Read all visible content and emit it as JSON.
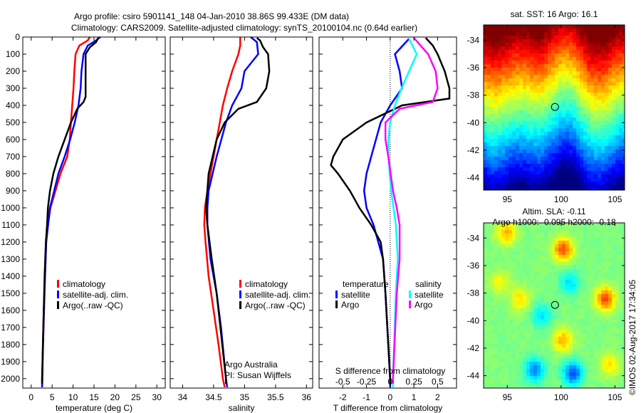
{
  "title_line1": "Argo profile: csiro 5901141_148 04-Jan-2010 38.86S 99.433E (DM data)",
  "title_line2": "Climatology: CARS2009. Satellite-adjusted climatology: synTS_20100104.nc (0.64d earlier)",
  "watermark": "©IMOS 02-Aug-2017 17:34:05",
  "colors": {
    "climatology": "#ff0000",
    "satellite": "#0000ff",
    "argo": "#000000",
    "sal_satellite": "#00ffff",
    "sal_argo": "#ff00ff"
  },
  "chart_data": [
    {
      "type": "line",
      "name": "temperature",
      "xlabel": "temperature (deg C)",
      "ylabel": "",
      "xlim": [
        -2,
        32
      ],
      "ylim": [
        2055,
        0
      ],
      "xticks": [
        0,
        5,
        10,
        15,
        20,
        25,
        30
      ],
      "yticks": [
        0,
        100,
        200,
        300,
        400,
        500,
        600,
        700,
        800,
        900,
        1000,
        1100,
        1200,
        1300,
        1400,
        1500,
        1600,
        1700,
        1800,
        1900,
        2000
      ],
      "legend": [
        "climatology",
        "satellite-adj. clim.",
        "Argo(..raw -QC)"
      ],
      "series": [
        {
          "name": "climatology",
          "color": "#ff0000",
          "depth": [
            0,
            20,
            50,
            100,
            200,
            300,
            400,
            500,
            600,
            700,
            800,
            900,
            1000,
            1100,
            1200,
            1400,
            1600,
            1800,
            2000,
            2050
          ],
          "values": [
            14,
            13.5,
            11.5,
            10.6,
            10.3,
            10.1,
            9.8,
            9.5,
            9.2,
            8.6,
            7,
            5.8,
            4.6,
            4,
            3.6,
            3.3,
            3.0,
            2.8,
            2.7,
            2.6
          ]
        },
        {
          "name": "satellite-adj. clim.",
          "color": "#0000ff",
          "depth": [
            0,
            20,
            50,
            100,
            200,
            300,
            400,
            500,
            600,
            700,
            800,
            900,
            1000,
            1200,
            1400,
            2000,
            2050
          ],
          "values": [
            16.5,
            15.5,
            13.5,
            12.5,
            12,
            11.8,
            11.3,
            10.4,
            9.3,
            8,
            6.5,
            5.5,
            4.5,
            3.6,
            3.3,
            2.6,
            2.6
          ]
        },
        {
          "name": "Argo(..raw -QC)",
          "color": "#000000",
          "depth": [
            5,
            30,
            60,
            100,
            200,
            350,
            380,
            420,
            500,
            600,
            700,
            800,
            900,
            1000,
            1100,
            1200,
            1400,
            2000,
            2030
          ],
          "values": [
            16,
            15.5,
            14,
            13,
            13,
            13,
            12.5,
            11,
            9.5,
            8,
            6.5,
            5.3,
            4.5,
            4,
            3.8,
            3.5,
            3.2,
            2.6,
            2.6
          ]
        }
      ]
    },
    {
      "type": "line",
      "name": "salinity",
      "xlabel": "salinity",
      "xlim": [
        33.8,
        36.1
      ],
      "ylim": [
        2055,
        0
      ],
      "xticks": [
        34,
        34.5,
        35,
        35.5,
        36
      ],
      "legend": [
        "climatology",
        "satellite-adj. clim.",
        "Argo(..raw -QC)"
      ],
      "annotation": [
        "Argo Australia",
        "PI: Susan Wijffels"
      ],
      "series": [
        {
          "name": "climatology",
          "color": "#ff0000",
          "depth": [
            0,
            50,
            100,
            200,
            300,
            400,
            500,
            600,
            700,
            800,
            900,
            1000,
            1100,
            1200,
            1400,
            1600,
            1800,
            2000,
            2050
          ],
          "values": [
            34.93,
            34.93,
            34.9,
            34.8,
            34.72,
            34.65,
            34.6,
            34.55,
            34.5,
            34.45,
            34.4,
            34.36,
            34.35,
            34.37,
            34.42,
            34.5,
            34.58,
            34.65,
            34.68
          ]
        },
        {
          "name": "satellite-adj. clim.",
          "color": "#0000ff",
          "depth": [
            0,
            30,
            100,
            200,
            300,
            400,
            500,
            700,
            900,
            1000,
            1100,
            1300,
            1500,
            1700,
            2000,
            2050
          ],
          "values": [
            35.1,
            35.2,
            35.22,
            35.0,
            34.95,
            34.8,
            34.7,
            34.55,
            34.42,
            34.4,
            34.4,
            34.45,
            34.55,
            34.62,
            34.7,
            34.72
          ]
        },
        {
          "name": "Argo(..raw -QC)",
          "color": "#000000",
          "depth": [
            5,
            20,
            60,
            100,
            200,
            300,
            380,
            420,
            500,
            600,
            800,
            1000,
            1100,
            1300,
            1500,
            2000,
            2030
          ],
          "values": [
            35.2,
            35.25,
            35.3,
            35.38,
            35.4,
            35.35,
            35.2,
            34.9,
            34.68,
            34.55,
            34.42,
            34.38,
            34.4,
            34.47,
            34.55,
            34.7,
            34.7
          ]
        }
      ]
    },
    {
      "type": "line",
      "name": "differences",
      "xlabel": "T difference from climatology",
      "xlabel2": "S difference from climatology",
      "xlim": [
        -3,
        2.8
      ],
      "ylim": [
        2055,
        0
      ],
      "xticks": [
        -2,
        -1,
        0,
        1,
        2
      ],
      "xticks2": [
        -0.5,
        -0.25,
        0,
        0.25,
        0.5
      ],
      "xtick2_labels": [
        "-0.5",
        "-0.25",
        "0",
        "0.25",
        "0.5"
      ],
      "legend_titles": [
        "temperature",
        "salinity"
      ],
      "legend": [
        "satellite",
        "Argo",
        "satellite",
        "Argo"
      ],
      "series": [
        {
          "name": "T satellite",
          "var": "T",
          "color": "#0000ff",
          "depth": [
            10,
            100,
            200,
            300,
            400,
            500,
            700,
            800,
            900,
            1000,
            1100,
            1300,
            1500,
            2000,
            2050
          ],
          "values": [
            0.8,
            0.2,
            0.4,
            0.5,
            0,
            -0.4,
            -0.8,
            -1.0,
            -1.1,
            -1.0,
            -0.7,
            -0.3,
            -0.2,
            0,
            0
          ]
        },
        {
          "name": "T Argo",
          "var": "T",
          "color": "#000000",
          "depth": [
            5,
            50,
            100,
            200,
            300,
            360,
            400,
            500,
            600,
            700,
            750,
            800,
            900,
            1000,
            1100,
            1200,
            1300,
            1500,
            2000,
            2030
          ],
          "values": [
            1.5,
            1.8,
            2.0,
            2.3,
            2.5,
            2.5,
            0.5,
            -1.0,
            -2.0,
            -2.4,
            -2.5,
            -2.2,
            -1.7,
            -1.3,
            -0.8,
            -0.4,
            -0.3,
            -0.2,
            0,
            0
          ]
        },
        {
          "name": "S satellite",
          "var": "S",
          "color": "#00ffff",
          "depth": [
            10,
            100,
            200,
            300,
            400,
            500,
            600,
            700,
            900,
            1100,
            1300,
            1500,
            2000,
            2050
          ],
          "values": [
            0.2,
            0.28,
            0.2,
            0.12,
            0.05,
            0,
            -0.02,
            -0.02,
            0.01,
            0.06,
            0.08,
            0.06,
            0.03,
            0.03
          ]
        },
        {
          "name": "S Argo",
          "var": "S",
          "color": "#ff00ff",
          "depth": [
            5,
            100,
            200,
            300,
            380,
            420,
            500,
            600,
            700,
            900,
            1000,
            1100,
            1300,
            1500,
            2000,
            2030
          ],
          "values": [
            0.25,
            0.4,
            0.48,
            0.5,
            0.45,
            0.1,
            -0.05,
            -0.05,
            -0.02,
            0.03,
            0.07,
            0.1,
            0.1,
            0.07,
            0.03,
            0.03
          ]
        }
      ]
    },
    {
      "type": "heatmap",
      "name": "sst-map",
      "title": "sat. SST: 16 Argo: 16.1",
      "xlim": [
        92.8,
        105.9
      ],
      "ylim": [
        -44.9,
        -32.9
      ],
      "xticks": [
        95,
        100,
        105
      ],
      "yticks": [
        -34,
        -36,
        -38,
        -40,
        -42,
        -44
      ],
      "marker": {
        "lon": 99.433,
        "lat": -38.86
      }
    },
    {
      "type": "heatmap",
      "name": "sla-map",
      "title": "Altim. SLA: -0.11",
      "subtitle": "Argo h1000: -0.095 h2000: -0.18",
      "xlim": [
        92.8,
        105.9
      ],
      "ylim": [
        -44.9,
        -32.9
      ],
      "xticks": [
        95,
        100,
        105
      ],
      "yticks": [
        -34,
        -36,
        -38,
        -40,
        -42,
        -44
      ],
      "marker": {
        "lon": 99.433,
        "lat": -38.86
      }
    }
  ]
}
